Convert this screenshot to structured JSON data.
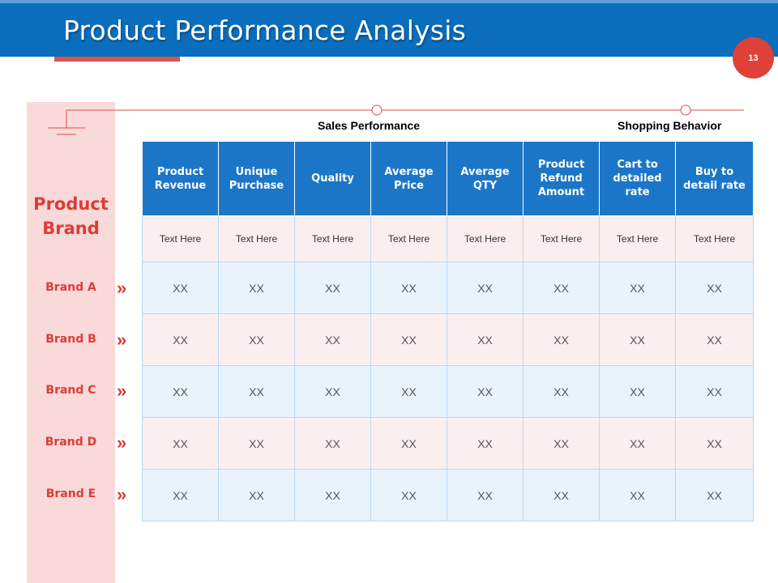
{
  "slide": {
    "title": "Product Performance Analysis",
    "page_number": "13"
  },
  "colors": {
    "header_blue": "#0a6ebd",
    "accent_red": "#dd3c37",
    "table_header": "#1b76c8",
    "side_panel": "#f9d9d9"
  },
  "sections": {
    "sales": "Sales Performance",
    "shopping": "Shopping Behavior"
  },
  "side": {
    "heading": "Product Brand",
    "brands": [
      "Brand A",
      "Brand B",
      "Brand C",
      "Brand D",
      "Brand E"
    ],
    "chevron": "»"
  },
  "table": {
    "headers": [
      "Product Revenue",
      "Unique Purchase",
      "Quality",
      "Average Price",
      "Average QTY",
      "Product Refund Amount",
      "Cart to detailed rate",
      "Buy to detail rate"
    ],
    "subheader": [
      "Text Here",
      "Text Here",
      "Text Here",
      "Text Here",
      "Text Here",
      "Text Here",
      "Text Here",
      "Text Here"
    ],
    "rows": [
      [
        "XX",
        "XX",
        "XX",
        "XX",
        "XX",
        "XX",
        "XX",
        "XX"
      ],
      [
        "XX",
        "XX",
        "XX",
        "XX",
        "XX",
        "XX",
        "XX",
        "XX"
      ],
      [
        "XX",
        "XX",
        "XX",
        "XX",
        "XX",
        "XX",
        "XX",
        "XX"
      ],
      [
        "XX",
        "XX",
        "XX",
        "XX",
        "XX",
        "XX",
        "XX",
        "XX"
      ],
      [
        "XX",
        "XX",
        "XX",
        "XX",
        "XX",
        "XX",
        "XX",
        "XX"
      ]
    ]
  }
}
